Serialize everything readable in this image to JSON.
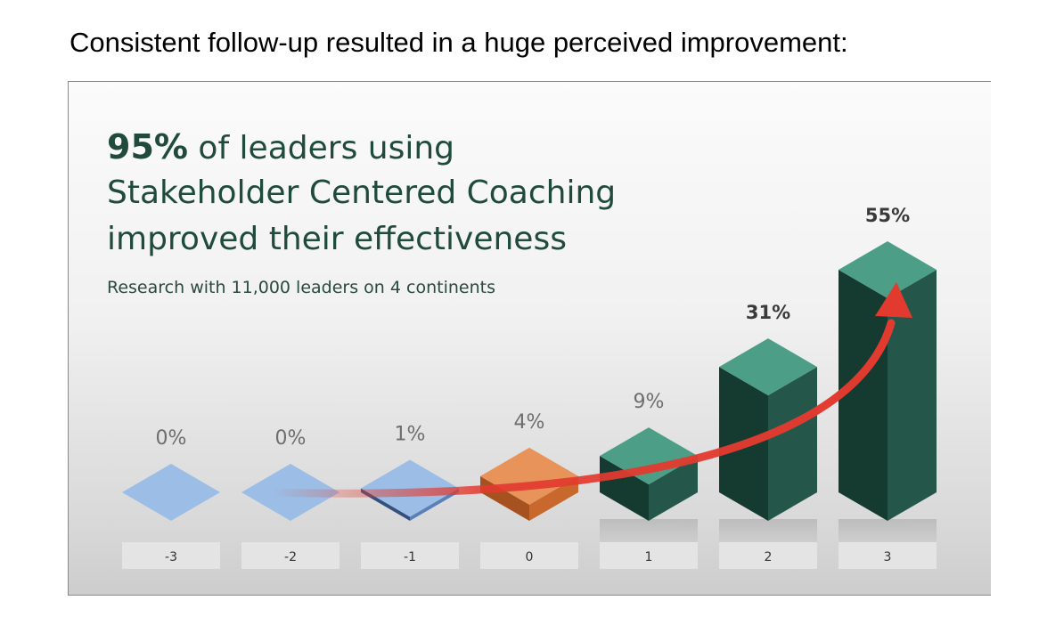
{
  "caption": "Consistent follow-up resulted in a huge perceived improvement:",
  "headline": {
    "highlight": "95%",
    "line1_rest": " of leaders using",
    "line2": "Stakeholder Centered Coaching",
    "line3": "improved their effectiveness",
    "subtitle": "Research with 11,000 leaders on 4 continents"
  },
  "colors": {
    "negative": "#9bbde6",
    "zero": "#e8935a",
    "positive_top": "#4c9e86",
    "positive_front": "#153a30",
    "positive_side": "#24574a",
    "arrow": "#e23a2f",
    "headline": "#1f4a3c"
  },
  "chart_data": {
    "type": "bar",
    "title": "95% of leaders using Stakeholder Centered Coaching improved their effectiveness",
    "xlabel": "",
    "ylabel": "",
    "categories": [
      "-3",
      "-2",
      "-1",
      "0",
      "1",
      "2",
      "3"
    ],
    "values": [
      0,
      0,
      1,
      4,
      9,
      31,
      55
    ],
    "labels": [
      "0%",
      "0%",
      "1%",
      "4%",
      "9%",
      "31%",
      "55%"
    ],
    "ylim": [
      0,
      55
    ],
    "annotations": [
      "trend arrow rising from -2 to 3"
    ]
  }
}
